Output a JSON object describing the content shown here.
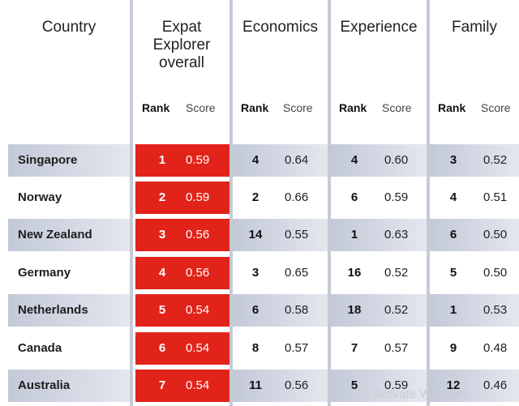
{
  "header": {
    "country": "Country",
    "overall": [
      "Expat",
      "Explorer",
      "overall"
    ],
    "economics": "Economics",
    "experience": "Experience",
    "family": "Family",
    "rank_label": "Rank",
    "score_label": "Score"
  },
  "rows": [
    {
      "country": "Singapore",
      "overall_rank": "1",
      "overall_score": "0.59",
      "eco_rank": "4",
      "eco_score": "0.64",
      "exp_rank": "4",
      "exp_score": "0.60",
      "fam_rank": "3",
      "fam_score": "0.52"
    },
    {
      "country": "Norway",
      "overall_rank": "2",
      "overall_score": "0.59",
      "eco_rank": "2",
      "eco_score": "0.66",
      "exp_rank": "6",
      "exp_score": "0.59",
      "fam_rank": "4",
      "fam_score": "0.51"
    },
    {
      "country": "New Zealand",
      "overall_rank": "3",
      "overall_score": "0.56",
      "eco_rank": "14",
      "eco_score": "0.55",
      "exp_rank": "1",
      "exp_score": "0.63",
      "fam_rank": "6",
      "fam_score": "0.50"
    },
    {
      "country": "Germany",
      "overall_rank": "4",
      "overall_score": "0.56",
      "eco_rank": "3",
      "eco_score": "0.65",
      "exp_rank": "16",
      "exp_score": "0.52",
      "fam_rank": "5",
      "fam_score": "0.50"
    },
    {
      "country": "Netherlands",
      "overall_rank": "5",
      "overall_score": "0.54",
      "eco_rank": "6",
      "eco_score": "0.58",
      "exp_rank": "18",
      "exp_score": "0.52",
      "fam_rank": "1",
      "fam_score": "0.53"
    },
    {
      "country": "Canada",
      "overall_rank": "6",
      "overall_score": "0.54",
      "eco_rank": "8",
      "eco_score": "0.57",
      "exp_rank": "7",
      "exp_score": "0.57",
      "fam_rank": "9",
      "fam_score": "0.48"
    },
    {
      "country": "Australia",
      "overall_rank": "7",
      "overall_score": "0.54",
      "eco_rank": "11",
      "eco_score": "0.56",
      "exp_rank": "5",
      "exp_score": "0.59",
      "fam_rank": "12",
      "fam_score": "0.46"
    }
  ],
  "watermark": "Activate Windows",
  "colors": {
    "highlight": "#e2231a",
    "shade": "#c3c9d8",
    "divider": "#c5cad6"
  }
}
